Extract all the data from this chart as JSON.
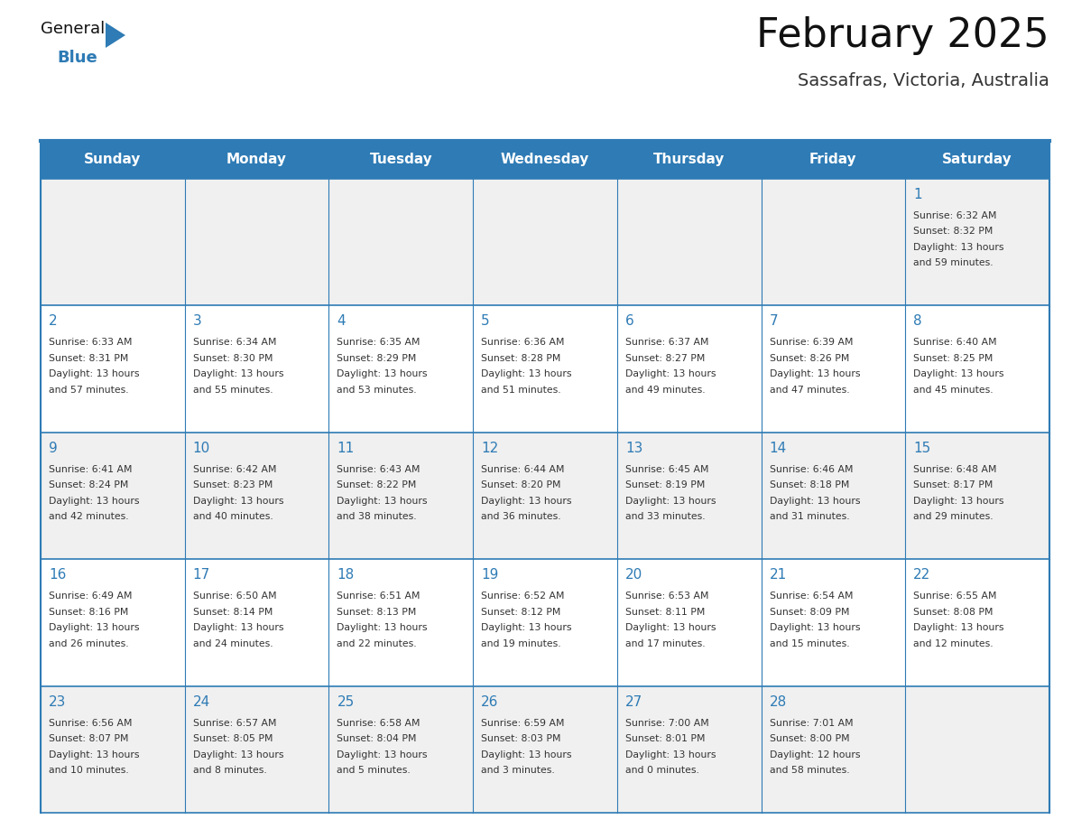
{
  "title": "February 2025",
  "subtitle": "Sassafras, Victoria, Australia",
  "days_of_week": [
    "Sunday",
    "Monday",
    "Tuesday",
    "Wednesday",
    "Thursday",
    "Friday",
    "Saturday"
  ],
  "header_bg": "#2E7BB5",
  "header_text": "#FFFFFF",
  "cell_bg_odd": "#F0F0F0",
  "cell_bg_even": "#FFFFFF",
  "border_color": "#2E7BB5",
  "title_color": "#111111",
  "subtitle_color": "#333333",
  "day_number_color": "#2E7BB5",
  "cell_text_color": "#333333",
  "logo_general_color": "#111111",
  "logo_blue_color": "#2E7BB5",
  "weeks": [
    [
      null,
      null,
      null,
      null,
      null,
      null,
      1
    ],
    [
      2,
      3,
      4,
      5,
      6,
      7,
      8
    ],
    [
      9,
      10,
      11,
      12,
      13,
      14,
      15
    ],
    [
      16,
      17,
      18,
      19,
      20,
      21,
      22
    ],
    [
      23,
      24,
      25,
      26,
      27,
      28,
      null
    ]
  ],
  "cell_data": {
    "1": {
      "sunrise": "6:32 AM",
      "sunset": "8:32 PM",
      "daylight_hours": 13,
      "daylight_minutes": 59
    },
    "2": {
      "sunrise": "6:33 AM",
      "sunset": "8:31 PM",
      "daylight_hours": 13,
      "daylight_minutes": 57
    },
    "3": {
      "sunrise": "6:34 AM",
      "sunset": "8:30 PM",
      "daylight_hours": 13,
      "daylight_minutes": 55
    },
    "4": {
      "sunrise": "6:35 AM",
      "sunset": "8:29 PM",
      "daylight_hours": 13,
      "daylight_minutes": 53
    },
    "5": {
      "sunrise": "6:36 AM",
      "sunset": "8:28 PM",
      "daylight_hours": 13,
      "daylight_minutes": 51
    },
    "6": {
      "sunrise": "6:37 AM",
      "sunset": "8:27 PM",
      "daylight_hours": 13,
      "daylight_minutes": 49
    },
    "7": {
      "sunrise": "6:39 AM",
      "sunset": "8:26 PM",
      "daylight_hours": 13,
      "daylight_minutes": 47
    },
    "8": {
      "sunrise": "6:40 AM",
      "sunset": "8:25 PM",
      "daylight_hours": 13,
      "daylight_minutes": 45
    },
    "9": {
      "sunrise": "6:41 AM",
      "sunset": "8:24 PM",
      "daylight_hours": 13,
      "daylight_minutes": 42
    },
    "10": {
      "sunrise": "6:42 AM",
      "sunset": "8:23 PM",
      "daylight_hours": 13,
      "daylight_minutes": 40
    },
    "11": {
      "sunrise": "6:43 AM",
      "sunset": "8:22 PM",
      "daylight_hours": 13,
      "daylight_minutes": 38
    },
    "12": {
      "sunrise": "6:44 AM",
      "sunset": "8:20 PM",
      "daylight_hours": 13,
      "daylight_minutes": 36
    },
    "13": {
      "sunrise": "6:45 AM",
      "sunset": "8:19 PM",
      "daylight_hours": 13,
      "daylight_minutes": 33
    },
    "14": {
      "sunrise": "6:46 AM",
      "sunset": "8:18 PM",
      "daylight_hours": 13,
      "daylight_minutes": 31
    },
    "15": {
      "sunrise": "6:48 AM",
      "sunset": "8:17 PM",
      "daylight_hours": 13,
      "daylight_minutes": 29
    },
    "16": {
      "sunrise": "6:49 AM",
      "sunset": "8:16 PM",
      "daylight_hours": 13,
      "daylight_minutes": 26
    },
    "17": {
      "sunrise": "6:50 AM",
      "sunset": "8:14 PM",
      "daylight_hours": 13,
      "daylight_minutes": 24
    },
    "18": {
      "sunrise": "6:51 AM",
      "sunset": "8:13 PM",
      "daylight_hours": 13,
      "daylight_minutes": 22
    },
    "19": {
      "sunrise": "6:52 AM",
      "sunset": "8:12 PM",
      "daylight_hours": 13,
      "daylight_minutes": 19
    },
    "20": {
      "sunrise": "6:53 AM",
      "sunset": "8:11 PM",
      "daylight_hours": 13,
      "daylight_minutes": 17
    },
    "21": {
      "sunrise": "6:54 AM",
      "sunset": "8:09 PM",
      "daylight_hours": 13,
      "daylight_minutes": 15
    },
    "22": {
      "sunrise": "6:55 AM",
      "sunset": "8:08 PM",
      "daylight_hours": 13,
      "daylight_minutes": 12
    },
    "23": {
      "sunrise": "6:56 AM",
      "sunset": "8:07 PM",
      "daylight_hours": 13,
      "daylight_minutes": 10
    },
    "24": {
      "sunrise": "6:57 AM",
      "sunset": "8:05 PM",
      "daylight_hours": 13,
      "daylight_minutes": 8
    },
    "25": {
      "sunrise": "6:58 AM",
      "sunset": "8:04 PM",
      "daylight_hours": 13,
      "daylight_minutes": 5
    },
    "26": {
      "sunrise": "6:59 AM",
      "sunset": "8:03 PM",
      "daylight_hours": 13,
      "daylight_minutes": 3
    },
    "27": {
      "sunrise": "7:00 AM",
      "sunset": "8:01 PM",
      "daylight_hours": 13,
      "daylight_minutes": 0
    },
    "28": {
      "sunrise": "7:01 AM",
      "sunset": "8:00 PM",
      "daylight_hours": 12,
      "daylight_minutes": 58
    }
  },
  "fig_width": 11.88,
  "fig_height": 9.18,
  "dpi": 100
}
